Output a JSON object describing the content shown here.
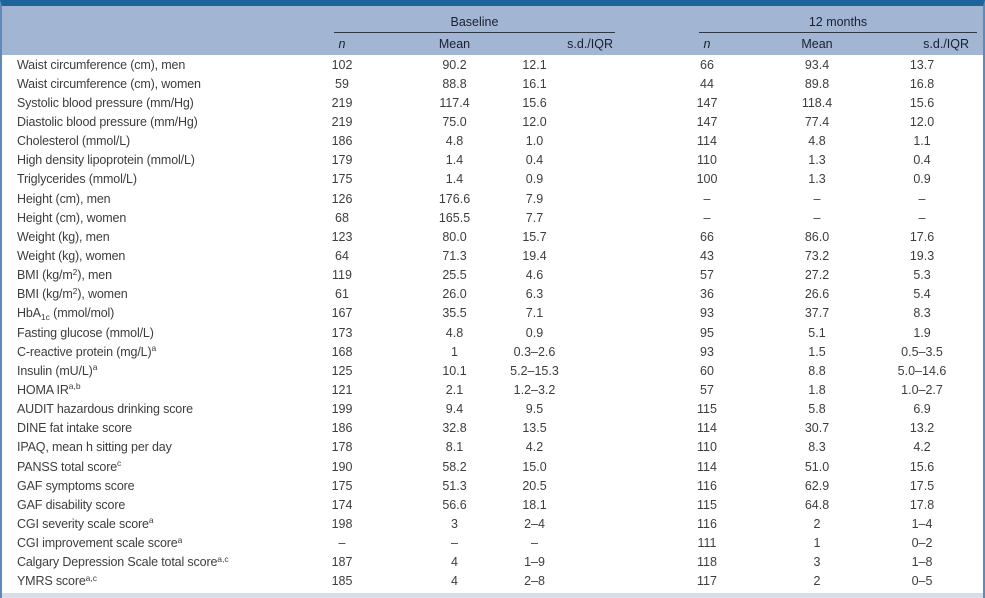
{
  "colors": {
    "top_rule": "#1d639c",
    "header_band": "#a2b5d3",
    "side_border": "#5d8ab8",
    "bottom_strip": "#d7dde9",
    "group_underline": "#2e3744",
    "body_text": "#3d3d3d",
    "header_text": "#1a2130"
  },
  "table": {
    "groups": [
      {
        "label": "Baseline"
      },
      {
        "label": "12 months"
      }
    ],
    "subheaders": {
      "n": "n",
      "mean": "Mean",
      "sd": "s.d./IQR"
    },
    "rows": [
      {
        "label": "Waist circumference (cm), men",
        "baseline": [
          "102",
          "90.2",
          "12.1"
        ],
        "m12": [
          "66",
          "93.4",
          "13.7"
        ]
      },
      {
        "label": "Waist circumference (cm), women",
        "baseline": [
          "59",
          "88.8",
          "16.1"
        ],
        "m12": [
          "44",
          "89.8",
          "16.8"
        ]
      },
      {
        "label": "Systolic blood pressure (mm/Hg)",
        "baseline": [
          "219",
          "117.4",
          "15.6"
        ],
        "m12": [
          "147",
          "118.4",
          "15.6"
        ]
      },
      {
        "label": "Diastolic blood pressure (mm/Hg)",
        "baseline": [
          "219",
          "75.0",
          "12.0"
        ],
        "m12": [
          "147",
          "77.4",
          "12.0"
        ]
      },
      {
        "label": "Cholesterol (mmol/L)",
        "baseline": [
          "186",
          "4.8",
          "1.0"
        ],
        "m12": [
          "114",
          "4.8",
          "1.1"
        ]
      },
      {
        "label": "High density lipoprotein (mmol/L)",
        "baseline": [
          "179",
          "1.4",
          "0.4"
        ],
        "m12": [
          "110",
          "1.3",
          "0.4"
        ]
      },
      {
        "label": "Triglycerides (mmol/L)",
        "baseline": [
          "175",
          "1.4",
          "0.9"
        ],
        "m12": [
          "100",
          "1.3",
          "0.9"
        ]
      },
      {
        "label": "Height (cm), men",
        "baseline": [
          "126",
          "176.6",
          "7.9"
        ],
        "m12": [
          "–",
          "–",
          "–"
        ]
      },
      {
        "label": "Height (cm), women",
        "baseline": [
          "68",
          "165.5",
          "7.7"
        ],
        "m12": [
          "–",
          "–",
          "–"
        ]
      },
      {
        "label": "Weight (kg), men",
        "baseline": [
          "123",
          "80.0",
          "15.7"
        ],
        "m12": [
          "66",
          "86.0",
          "17.6"
        ]
      },
      {
        "label": "Weight (kg), women",
        "baseline": [
          "64",
          "71.3",
          "19.4"
        ],
        "m12": [
          "43",
          "73.2",
          "19.3"
        ]
      },
      {
        "label": "BMI (kg/m^{2}), men",
        "baseline": [
          "119",
          "25.5",
          "4.6"
        ],
        "m12": [
          "57",
          "27.2",
          "5.3"
        ]
      },
      {
        "label": "BMI (kg/m^{2}), women",
        "baseline": [
          "61",
          "26.0",
          "6.3"
        ],
        "m12": [
          "36",
          "26.6",
          "5.4"
        ]
      },
      {
        "label": "HbA_{1c} (mmol/mol)",
        "baseline": [
          "167",
          "35.5",
          "7.1"
        ],
        "m12": [
          "93",
          "37.7",
          "8.3"
        ]
      },
      {
        "label": "Fasting glucose (mmol/L)",
        "baseline": [
          "173",
          "4.8",
          "0.9"
        ],
        "m12": [
          "95",
          "5.1",
          "1.9"
        ]
      },
      {
        "label": "C-reactive protein (mg/L)^{a}",
        "baseline": [
          "168",
          "1",
          "0.3–2.6"
        ],
        "m12": [
          "93",
          "1.5",
          "0.5–3.5"
        ]
      },
      {
        "label": "Insulin (mU/L)^{a}",
        "baseline": [
          "125",
          "10.1",
          "5.2–15.3"
        ],
        "m12": [
          "60",
          "8.8",
          "5.0–14.6"
        ]
      },
      {
        "label": "HOMA IR^{a,b}",
        "baseline": [
          "121",
          "2.1",
          "1.2–3.2"
        ],
        "m12": [
          "57",
          "1.8",
          "1.0–2.7"
        ]
      },
      {
        "label": "AUDIT hazardous drinking score",
        "baseline": [
          "199",
          "9.4",
          "9.5"
        ],
        "m12": [
          "115",
          "5.8",
          "6.9"
        ]
      },
      {
        "label": "DINE fat intake score",
        "baseline": [
          "186",
          "32.8",
          "13.5"
        ],
        "m12": [
          "114",
          "30.7",
          "13.2"
        ]
      },
      {
        "label": "IPAQ, mean h sitting per day",
        "baseline": [
          "178",
          "8.1",
          "4.2"
        ],
        "m12": [
          "110",
          "8.3",
          "4.2"
        ]
      },
      {
        "label": "PANSS total score^{c}",
        "baseline": [
          "190",
          "58.2",
          "15.0"
        ],
        "m12": [
          "114",
          "51.0",
          "15.6"
        ]
      },
      {
        "label": "GAF symptoms score",
        "baseline": [
          "175",
          "51.3",
          "20.5"
        ],
        "m12": [
          "116",
          "62.9",
          "17.5"
        ]
      },
      {
        "label": "GAF disability score",
        "baseline": [
          "174",
          "56.6",
          "18.1"
        ],
        "m12": [
          "115",
          "64.8",
          "17.8"
        ]
      },
      {
        "label": "CGI severity scale score^{a}",
        "baseline": [
          "198",
          "3",
          "2–4"
        ],
        "m12": [
          "116",
          "2",
          "1–4"
        ]
      },
      {
        "label": "CGI improvement scale score^{a}",
        "baseline": [
          "–",
          "–",
          "–"
        ],
        "m12": [
          "111",
          "1",
          "0–2"
        ]
      },
      {
        "label": "Calgary Depression Scale total score^{a,c}",
        "baseline": [
          "187",
          "4",
          "1–9"
        ],
        "m12": [
          "118",
          "3",
          "1–8"
        ]
      },
      {
        "label": "YMRS score^{a,c}",
        "baseline": [
          "185",
          "4",
          "2–8"
        ],
        "m12": [
          "117",
          "2",
          "0–5"
        ]
      }
    ]
  }
}
